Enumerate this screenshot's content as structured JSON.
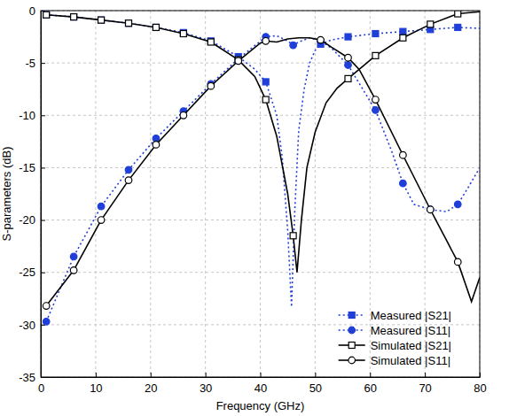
{
  "chart_data": {
    "type": "line",
    "x_label": "Frequency (GHz)",
    "y_label": "S-parameters (dB)",
    "xlim": [
      0,
      80
    ],
    "xticks": [
      0,
      10,
      20,
      30,
      40,
      50,
      60,
      70,
      80
    ],
    "ylim": [
      -35,
      0
    ],
    "yticks": [
      -35,
      -30,
      -25,
      -20,
      -15,
      -10,
      -5,
      0
    ],
    "grid": true,
    "legend": "lower right",
    "series": [
      {
        "name": "Measured |S21|",
        "color": "#1f3fd8",
        "line_style": "dotted",
        "marker": "square",
        "x": [
          1,
          6,
          11,
          16,
          21,
          26,
          31,
          36,
          39,
          41,
          43,
          44,
          45,
          45.7,
          46.3,
          47,
          48,
          49,
          50,
          51,
          53,
          56,
          61,
          66,
          71,
          76,
          80
        ],
        "values": [
          -0.4,
          -0.6,
          -0.9,
          -1.2,
          -1.6,
          -2.1,
          -2.9,
          -4.4,
          -5.6,
          -6.8,
          -10,
          -14,
          -21,
          -28.3,
          -19,
          -11.5,
          -7.5,
          -5,
          -3.8,
          -3.2,
          -2.8,
          -2.5,
          -2.2,
          -2,
          -1.8,
          -1.6,
          -1.7
        ]
      },
      {
        "name": "Measured |S11|",
        "color": "#1f3fd8",
        "line_style": "dotted",
        "marker": "circle",
        "x": [
          1,
          6,
          11,
          16,
          21,
          26,
          31,
          36,
          41,
          43,
          45,
          46,
          47,
          49,
          51,
          53,
          56,
          61,
          64,
          66,
          68,
          71,
          74,
          76,
          78,
          80
        ],
        "values": [
          -29.7,
          -23.5,
          -18.7,
          -15.2,
          -12.2,
          -9.6,
          -7,
          -4.6,
          -2.5,
          -2.4,
          -2.9,
          -3.3,
          -3,
          -2.6,
          -2.9,
          -3.6,
          -5.2,
          -9.5,
          -13.5,
          -16.5,
          -18.5,
          -19,
          -19.2,
          -18.5,
          -16.8,
          -15
        ]
      },
      {
        "name": "Simulated |S21|",
        "color": "#000000",
        "line_style": "solid",
        "marker": "open-square",
        "x": [
          1,
          6,
          11,
          16,
          21,
          26,
          31,
          36,
          39,
          41,
          43,
          45,
          46,
          46.7,
          47.5,
          48.5,
          50,
          52,
          54,
          56,
          61,
          66,
          71,
          76,
          80
        ],
        "values": [
          -0.4,
          -0.6,
          -0.9,
          -1.2,
          -1.6,
          -2.2,
          -3,
          -4.7,
          -6.3,
          -8.5,
          -12,
          -17.5,
          -21.5,
          -25,
          -20,
          -15,
          -11.6,
          -8.8,
          -7.4,
          -6.5,
          -4.3,
          -2.6,
          -1.3,
          -0.3,
          -0.1
        ]
      },
      {
        "name": "Simulated |S11|",
        "color": "#000000",
        "line_style": "solid",
        "marker": "open-circle",
        "x": [
          1,
          6,
          11,
          16,
          21,
          26,
          31,
          36,
          40,
          41,
          43,
          45,
          47,
          49,
          51,
          53,
          56,
          58,
          61,
          66,
          71,
          74,
          76,
          78.5,
          80
        ],
        "values": [
          -28.2,
          -24.8,
          -20,
          -16.2,
          -12.8,
          -10,
          -7.2,
          -4.8,
          -3.1,
          -2.9,
          -3,
          -2.7,
          -2.6,
          -2.6,
          -2.8,
          -3.5,
          -4.5,
          -5.6,
          -8.5,
          -13.8,
          -19,
          -22,
          -24,
          -27.8,
          -25.5
        ]
      }
    ]
  }
}
